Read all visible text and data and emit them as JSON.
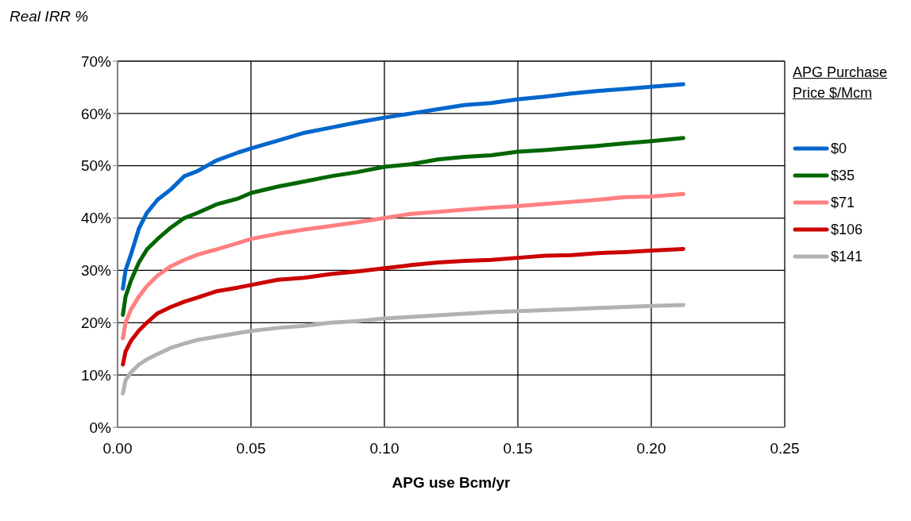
{
  "chart_data": {
    "type": "line",
    "xlabel": "APG use Bcm/yr",
    "ylabel": "Real IRR %",
    "legend_title": "APG Purchase Price $/Mcm",
    "x": [
      0.002,
      0.003,
      0.005,
      0.008,
      0.011,
      0.015,
      0.02,
      0.025,
      0.03,
      0.037,
      0.045,
      0.05,
      0.06,
      0.07,
      0.08,
      0.09,
      0.1,
      0.11,
      0.12,
      0.13,
      0.14,
      0.15,
      0.16,
      0.17,
      0.18,
      0.19,
      0.2,
      0.212
    ],
    "series": [
      {
        "name": "$0",
        "color": "#0066cc",
        "values": [
          26.5,
          30,
          33,
          38,
          41,
          43.5,
          45.5,
          48,
          49,
          51,
          52.5,
          53.3,
          54.8,
          56.3,
          57.3,
          58.3,
          59.2,
          60,
          60.8,
          61.6,
          62,
          62.7,
          63.2,
          63.8,
          64.3,
          64.7,
          65.1,
          65.6
        ]
      },
      {
        "name": "$35",
        "color": "#006600",
        "values": [
          21.5,
          25,
          28,
          31.5,
          34,
          36,
          38.2,
          40,
          41,
          42.6,
          43.7,
          44.8,
          46,
          47,
          48,
          48.8,
          49.8,
          50.3,
          51.2,
          51.7,
          52,
          52.7,
          53,
          53.4,
          53.8,
          54.3,
          54.7,
          55.3
        ]
      },
      {
        "name": "$71",
        "color": "#ff8080",
        "values": [
          17,
          20,
          22.5,
          25,
          27,
          29,
          30.8,
          32,
          33,
          34,
          35.2,
          36,
          37,
          37.8,
          38.5,
          39.2,
          40,
          40.8,
          41.2,
          41.6,
          42,
          42.3,
          42.7,
          43.1,
          43.5,
          44,
          44.1,
          44.6
        ]
      },
      {
        "name": "$106",
        "color": "#cc0000",
        "values": [
          12,
          14.5,
          16.5,
          18.5,
          20,
          21.8,
          23,
          24,
          24.8,
          26,
          26.7,
          27.2,
          28.2,
          28.6,
          29.3,
          29.8,
          30.4,
          31,
          31.5,
          31.8,
          32,
          32.4,
          32.8,
          32.9,
          33.3,
          33.5,
          33.8,
          34.1
        ]
      },
      {
        "name": "$141",
        "color": "#b2b2b2",
        "values": [
          6.5,
          9,
          10.5,
          12,
          13,
          14,
          15.2,
          16,
          16.7,
          17.3,
          18,
          18.4,
          19,
          19.4,
          20,
          20.3,
          20.8,
          21.1,
          21.4,
          21.7,
          22,
          22.2,
          22.4,
          22.6,
          22.8,
          23,
          23.2,
          23.4
        ]
      }
    ],
    "xlim": [
      0,
      0.25
    ],
    "xticks": [
      {
        "value": 0,
        "label": "0.00"
      },
      {
        "value": 0.05,
        "label": "0.05"
      },
      {
        "value": 0.1,
        "label": "0.10"
      },
      {
        "value": 0.15,
        "label": "0.15"
      },
      {
        "value": 0.2,
        "label": "0.20"
      },
      {
        "value": 0.25,
        "label": "0.25"
      }
    ],
    "ylim": [
      0,
      70
    ],
    "yticks": [
      {
        "value": 0,
        "label": "0%"
      },
      {
        "value": 10,
        "label": "10%"
      },
      {
        "value": 20,
        "label": "20%"
      },
      {
        "value": 30,
        "label": "30%"
      },
      {
        "value": 40,
        "label": "40%"
      },
      {
        "value": 50,
        "label": "50%"
      },
      {
        "value": 60,
        "label": "60%"
      },
      {
        "value": 70,
        "label": "70%"
      }
    ],
    "grid": true,
    "legend": "right",
    "marker": "none",
    "line_style": "solid"
  }
}
